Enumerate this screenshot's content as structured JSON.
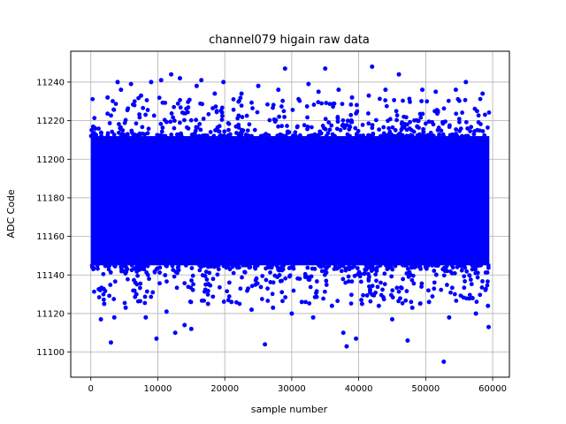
{
  "chart_data": {
    "type": "scatter",
    "title": "channel079 higain raw data",
    "xlabel": "sample number",
    "ylabel": "ADC Code",
    "xlim": [
      -3000,
      62500
    ],
    "ylim": [
      11087,
      11256
    ],
    "xticks": [
      0,
      10000,
      20000,
      30000,
      40000,
      50000,
      60000
    ],
    "yticks": [
      11100,
      11120,
      11140,
      11160,
      11180,
      11200,
      11220,
      11240
    ],
    "grid": true,
    "legend": "none",
    "marker_color": "#0000ff",
    "series": [
      {
        "n_samples": 59500,
        "dense_band": [
          11145,
          11212
        ],
        "points": [
          [
            1500,
            11117
          ],
          [
            2000,
            11125
          ],
          [
            2500,
            11232
          ],
          [
            3000,
            11105
          ],
          [
            3500,
            11118
          ],
          [
            4000,
            11240
          ],
          [
            4500,
            11236
          ],
          [
            5200,
            11123
          ],
          [
            6000,
            11239
          ],
          [
            6800,
            11130
          ],
          [
            7500,
            11233
          ],
          [
            8200,
            11118
          ],
          [
            9000,
            11240
          ],
          [
            9800,
            11107
          ],
          [
            10500,
            11241
          ],
          [
            11300,
            11121
          ],
          [
            12000,
            11244
          ],
          [
            12600,
            11110
          ],
          [
            13300,
            11242
          ],
          [
            14000,
            11114
          ],
          [
            15000,
            11112
          ],
          [
            15800,
            11238
          ],
          [
            16500,
            11241
          ],
          [
            17500,
            11125
          ],
          [
            18500,
            11234
          ],
          [
            19800,
            11240
          ],
          [
            21000,
            11126
          ],
          [
            22500,
            11234
          ],
          [
            24000,
            11122
          ],
          [
            25000,
            11238
          ],
          [
            26000,
            11104
          ],
          [
            27200,
            11123
          ],
          [
            28000,
            11236
          ],
          [
            29000,
            11247
          ],
          [
            30000,
            11120
          ],
          [
            31500,
            11126
          ],
          [
            32500,
            11239
          ],
          [
            33200,
            11118
          ],
          [
            34000,
            11235
          ],
          [
            35000,
            11247
          ],
          [
            36000,
            11124
          ],
          [
            37000,
            11236
          ],
          [
            37700,
            11110
          ],
          [
            38200,
            11103
          ],
          [
            39000,
            11232
          ],
          [
            39600,
            11107
          ],
          [
            40500,
            11125
          ],
          [
            41500,
            11233
          ],
          [
            42000,
            11248
          ],
          [
            43000,
            11124
          ],
          [
            44000,
            11236
          ],
          [
            45000,
            11117
          ],
          [
            46000,
            11244
          ],
          [
            47300,
            11106
          ],
          [
            48000,
            11123
          ],
          [
            49500,
            11236
          ],
          [
            50500,
            11126
          ],
          [
            51500,
            11235
          ],
          [
            52700,
            11095
          ],
          [
            53500,
            11118
          ],
          [
            54500,
            11236
          ],
          [
            56000,
            11240
          ],
          [
            57000,
            11128
          ],
          [
            57500,
            11120
          ],
          [
            58500,
            11234
          ],
          [
            59300,
            11124
          ],
          [
            59400,
            11113
          ]
        ]
      }
    ]
  }
}
